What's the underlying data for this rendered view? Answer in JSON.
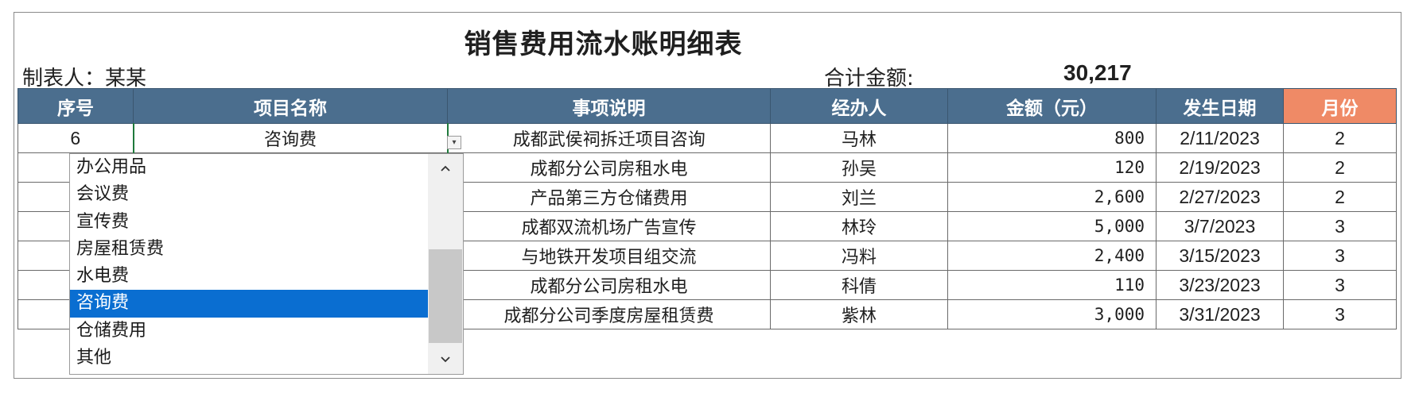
{
  "sheet": {
    "title": "销售费用流水账明细表",
    "author_label": "制表人：某某",
    "total_label": "合计金额:",
    "total_value": "30,217"
  },
  "columns": [
    "序号",
    "项目名称",
    "事项说明",
    "经办人",
    "金额（元）",
    "发生日期",
    "月份"
  ],
  "rows": [
    {
      "index": "6",
      "project": "咨询费",
      "desc": "成都武侯祠拆迁项目咨询",
      "handler": "马林",
      "amount": "800",
      "date": "2/11/2023",
      "month": "2"
    },
    {
      "index": "",
      "project": "",
      "desc": "成都分公司房租水电",
      "handler": "孙吴",
      "amount": "120",
      "date": "2/19/2023",
      "month": "2"
    },
    {
      "index": "",
      "project": "",
      "desc": "产品第三方仓储费用",
      "handler": "刘兰",
      "amount": "2,600",
      "date": "2/27/2023",
      "month": "2"
    },
    {
      "index": "",
      "project": "",
      "desc": "成都双流机场广告宣传",
      "handler": "林玲",
      "amount": "5,000",
      "date": "3/7/2023",
      "month": "3"
    },
    {
      "index": "",
      "project": "",
      "desc": "与地铁开发项目组交流",
      "handler": "冯料",
      "amount": "2,400",
      "date": "3/15/2023",
      "month": "3"
    },
    {
      "index": "",
      "project": "",
      "desc": "成都分公司房租水电",
      "handler": "科倩",
      "amount": "110",
      "date": "3/23/2023",
      "month": "3"
    },
    {
      "index": "",
      "project": "",
      "desc": "成都分公司季度房屋租赁费",
      "handler": "紫林",
      "amount": "3,000",
      "date": "3/31/2023",
      "month": "3"
    }
  ],
  "dropdown": {
    "options": [
      "办公用品",
      "会议费",
      "宣传费",
      "房屋租赁费",
      "水电费",
      "咨询费",
      "仓储费用",
      "其他"
    ],
    "selected": "咨询费",
    "selected_index": 5,
    "scroll_up_icon": "chevron-up-icon",
    "scroll_down_icon": "chevron-down-icon"
  },
  "colors": {
    "header_bg": "#4b6e8e",
    "month_header_bg": "#ef8a66",
    "selection_bg": "#0a6ed1"
  }
}
